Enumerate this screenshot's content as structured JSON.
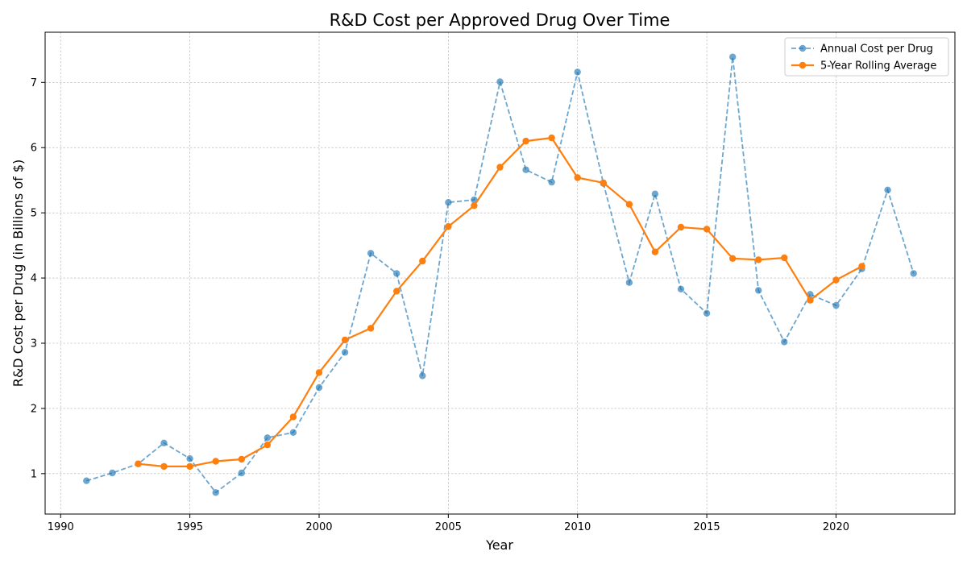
{
  "chart_data": {
    "type": "line",
    "title": "R&D Cost per Approved Drug Over Time",
    "xlabel": "Year",
    "ylabel": "R&D Cost per Drug (in Billions of $)",
    "xlim": [
      1989.4,
      2024.6
    ],
    "ylim": [
      0.38,
      7.77
    ],
    "xticks": [
      1990,
      1995,
      2000,
      2005,
      2010,
      2015,
      2020
    ],
    "yticks": [
      1,
      2,
      3,
      4,
      5,
      6,
      7
    ],
    "grid": true,
    "legend_position": "top-right",
    "series": [
      {
        "name": "Annual Cost per Drug",
        "color": "#1f77b4",
        "style": "dashed",
        "x": [
          1991,
          1992,
          1993,
          1994,
          1995,
          1996,
          1997,
          1998,
          1999,
          2000,
          2001,
          2002,
          2003,
          2004,
          2005,
          2006,
          2007,
          2008,
          2009,
          2010,
          2011,
          2012,
          2013,
          2014,
          2015,
          2016,
          2017,
          2018,
          2019,
          2020,
          2021,
          2022,
          2023
        ],
        "y": [
          0.89,
          1.01,
          1.15,
          1.47,
          1.23,
          0.71,
          1.01,
          1.55,
          1.63,
          2.32,
          2.86,
          4.38,
          4.07,
          2.5,
          5.16,
          5.2,
          7.01,
          5.66,
          5.47,
          7.16,
          5.45,
          3.93,
          5.29,
          3.83,
          3.46,
          7.39,
          3.81,
          3.02,
          3.75,
          3.58,
          4.14,
          5.35,
          4.07
        ]
      },
      {
        "name": "5-Year Rolling Average",
        "color": "#ff7f0e",
        "style": "solid",
        "x": [
          1993,
          1994,
          1995,
          1996,
          1997,
          1998,
          1999,
          2000,
          2001,
          2002,
          2003,
          2004,
          2005,
          2006,
          2007,
          2008,
          2009,
          2010,
          2011,
          2012,
          2013,
          2014,
          2015,
          2016,
          2017,
          2018,
          2019,
          2020,
          2021
        ],
        "y": [
          1.15,
          1.11,
          1.11,
          1.19,
          1.22,
          1.44,
          1.87,
          2.55,
          3.05,
          3.23,
          3.8,
          4.26,
          4.79,
          5.11,
          5.7,
          6.1,
          6.15,
          5.54,
          5.46,
          5.13,
          4.4,
          4.78,
          4.75,
          4.3,
          4.28,
          4.31,
          3.66,
          3.97,
          4.18
        ]
      }
    ]
  }
}
